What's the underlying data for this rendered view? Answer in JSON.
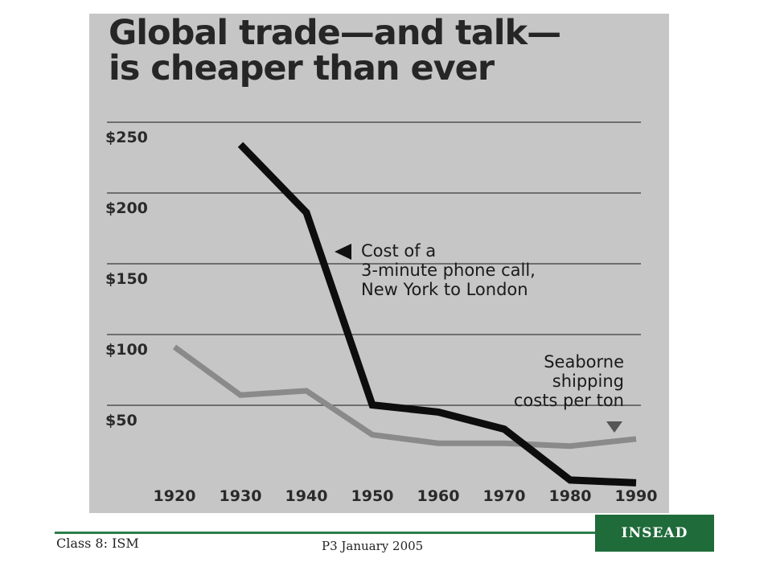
{
  "chart_data": {
    "type": "line",
    "title": "Global trade—and talk—\nis cheaper than ever",
    "x": [
      1920,
      1930,
      1940,
      1950,
      1960,
      1970,
      1980,
      1990
    ],
    "xlim": [
      1920,
      1990
    ],
    "ylim": [
      0,
      250
    ],
    "ytick_labels": [
      "$250",
      "$200",
      "$150",
      "$100",
      "$50"
    ],
    "yticks": [
      250,
      200,
      150,
      100,
      50
    ],
    "grid": true,
    "series": [
      {
        "name": "Cost of a\n3-minute phone call,\nNew York to London",
        "color": "#0d0d0d",
        "points": [
          [
            1930,
            245
          ],
          [
            1940,
            197
          ],
          [
            1950,
            61
          ],
          [
            1960,
            56
          ],
          [
            1970,
            44
          ],
          [
            1980,
            8
          ],
          [
            1990,
            6
          ]
        ]
      },
      {
        "name": "Seaborne\nshipping\ncosts per ton",
        "color": "#8a8a8a",
        "points": [
          [
            1920,
            102
          ],
          [
            1930,
            68
          ],
          [
            1940,
            71
          ],
          [
            1950,
            40
          ],
          [
            1960,
            34
          ],
          [
            1970,
            34
          ],
          [
            1980,
            32
          ],
          [
            1990,
            37
          ]
        ]
      }
    ]
  },
  "footer": {
    "left": "Class 8: ISM",
    "center": "P3 January 2005",
    "logo": "INSEAD"
  }
}
